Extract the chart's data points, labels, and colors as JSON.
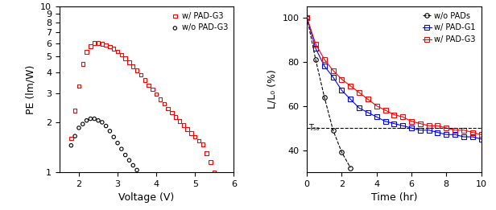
{
  "left": {
    "ylabel": "PE (lm/W)",
    "xlabel": "Voltage (V)",
    "xlim": [
      1.5,
      6.0
    ],
    "ylim": [
      1.0,
      10.0
    ],
    "yticks": [
      1,
      2,
      3,
      4,
      5,
      6,
      7,
      8,
      9,
      10
    ],
    "xticks": [
      2,
      3,
      4,
      5,
      6
    ],
    "pad_series": {
      "label": "w/ PAD-G3",
      "color": "red",
      "marker": "s",
      "x": [
        1.8,
        1.9,
        2.0,
        2.1,
        2.2,
        2.3,
        2.4,
        2.5,
        2.6,
        2.7,
        2.8,
        2.9,
        3.0,
        3.1,
        3.2,
        3.3,
        3.4,
        3.5,
        3.6,
        3.7,
        3.8,
        3.9,
        4.0,
        4.1,
        4.2,
        4.3,
        4.4,
        4.5,
        4.6,
        4.7,
        4.8,
        4.9,
        5.0,
        5.1,
        5.2,
        5.3,
        5.4,
        5.5
      ],
      "y": [
        1.6,
        2.35,
        3.3,
        4.5,
        5.3,
        5.75,
        6.0,
        6.0,
        5.95,
        5.85,
        5.7,
        5.55,
        5.35,
        5.1,
        4.85,
        4.6,
        4.35,
        4.1,
        3.85,
        3.6,
        3.35,
        3.15,
        2.95,
        2.75,
        2.58,
        2.42,
        2.28,
        2.15,
        2.03,
        1.92,
        1.82,
        1.72,
        1.63,
        1.55,
        1.47,
        1.3,
        1.15,
        1.0
      ]
    },
    "no_pad_series": {
      "label": "w/o PAD-G3",
      "color": "black",
      "marker": "o",
      "x": [
        1.8,
        1.9,
        2.0,
        2.1,
        2.2,
        2.3,
        2.4,
        2.5,
        2.6,
        2.7,
        2.8,
        2.9,
        3.0,
        3.1,
        3.2,
        3.3,
        3.4,
        3.5
      ],
      "y": [
        1.45,
        1.65,
        1.85,
        1.95,
        2.05,
        2.1,
        2.1,
        2.05,
        2.0,
        1.9,
        1.77,
        1.63,
        1.5,
        1.38,
        1.27,
        1.18,
        1.1,
        1.03
      ]
    }
  },
  "right": {
    "ylabel": "L/L₀ (%)",
    "xlabel": "Time (hr)",
    "xlim": [
      0,
      10
    ],
    "ylim": [
      30,
      105
    ],
    "yticks": [
      40,
      60,
      80,
      100
    ],
    "xticks": [
      0,
      2,
      4,
      6,
      8,
      10
    ],
    "t50_y": 50,
    "t50_label": "T₅₀",
    "no_pads_series": {
      "label": "w/o PADs",
      "color": "black",
      "marker": "o",
      "linestyle": "--",
      "x": [
        0,
        0.5,
        1.0,
        1.5,
        2.0,
        2.5
      ],
      "y": [
        100,
        81,
        64,
        49,
        39,
        32
      ]
    },
    "pad_g1_series": {
      "label": "w/ PAD-G1",
      "color": "blue",
      "marker": "s",
      "linestyle": "-",
      "x": [
        0,
        0.5,
        1.0,
        1.5,
        2.0,
        2.5,
        3.0,
        3.5,
        4.0,
        4.5,
        5.0,
        5.5,
        6.0,
        6.5,
        7.0,
        7.5,
        8.0,
        8.5,
        9.0,
        9.5,
        10.0
      ],
      "y": [
        100,
        86,
        78,
        73,
        67,
        63,
        59,
        57,
        55,
        53,
        52,
        51,
        50,
        49,
        49,
        48,
        47,
        47,
        46,
        46,
        45
      ]
    },
    "pad_g3_series": {
      "label": "w/ PAD-G3",
      "color": "red",
      "marker": "s",
      "linestyle": "-",
      "x": [
        0,
        0.5,
        1.0,
        1.5,
        2.0,
        2.5,
        3.0,
        3.5,
        4.0,
        4.5,
        5.0,
        5.5,
        6.0,
        6.5,
        7.0,
        7.5,
        8.0,
        8.5,
        9.0,
        9.5,
        10.0
      ],
      "y": [
        100,
        88,
        81,
        76,
        72,
        69,
        66,
        63,
        60,
        58,
        56,
        55,
        53,
        52,
        51,
        51,
        50,
        49,
        49,
        48,
        47
      ]
    }
  }
}
